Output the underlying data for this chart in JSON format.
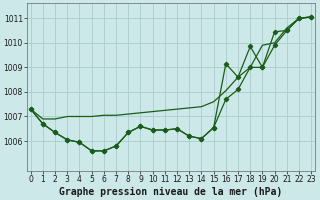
{
  "title": "Graphe pression niveau de la mer (hPa)",
  "bg_color": "#cce8e8",
  "grid_color": "#aacccc",
  "line_color": "#1a5c1a",
  "x_values": [
    0,
    1,
    2,
    3,
    4,
    5,
    6,
    7,
    8,
    9,
    10,
    11,
    12,
    13,
    14,
    15,
    16,
    17,
    18,
    19,
    20,
    21,
    22,
    23
  ],
  "line_wavy1": [
    1007.3,
    1006.7,
    1006.35,
    1006.05,
    1005.95,
    1005.6,
    1005.6,
    1005.8,
    1006.35,
    1006.6,
    1006.45,
    1006.45,
    1006.5,
    1006.2,
    1006.1,
    1006.55,
    1007.7,
    1008.1,
    1009.0,
    1009.0,
    1009.9,
    1010.5,
    1011.0,
    1011.05
  ],
  "line_wavy2": [
    1007.3,
    1006.7,
    1006.35,
    1006.05,
    1005.95,
    1005.6,
    1005.6,
    1005.8,
    1006.35,
    1006.6,
    1006.45,
    1006.45,
    1006.5,
    1006.2,
    1006.1,
    1006.55,
    1009.15,
    1008.6,
    1009.85,
    1009.0,
    1010.45,
    1010.5,
    1011.0,
    1011.05
  ],
  "line_straight": [
    1007.3,
    1006.9,
    1006.9,
    1007.0,
    1007.0,
    1007.0,
    1007.05,
    1007.05,
    1007.1,
    1007.15,
    1007.2,
    1007.25,
    1007.3,
    1007.35,
    1007.4,
    1007.6,
    1008.05,
    1008.6,
    1009.0,
    1009.9,
    1010.0,
    1010.6,
    1011.0,
    1011.05
  ],
  "ylim": [
    1004.8,
    1011.6
  ],
  "yticks": [
    1006,
    1007,
    1008,
    1009,
    1010,
    1011
  ],
  "xlim": [
    -0.3,
    23.3
  ],
  "xticks": [
    0,
    1,
    2,
    3,
    4,
    5,
    6,
    7,
    8,
    9,
    10,
    11,
    12,
    13,
    14,
    15,
    16,
    17,
    18,
    19,
    20,
    21,
    22,
    23
  ],
  "xlabel_fontsize": 7,
  "tick_fontsize": 5.5
}
